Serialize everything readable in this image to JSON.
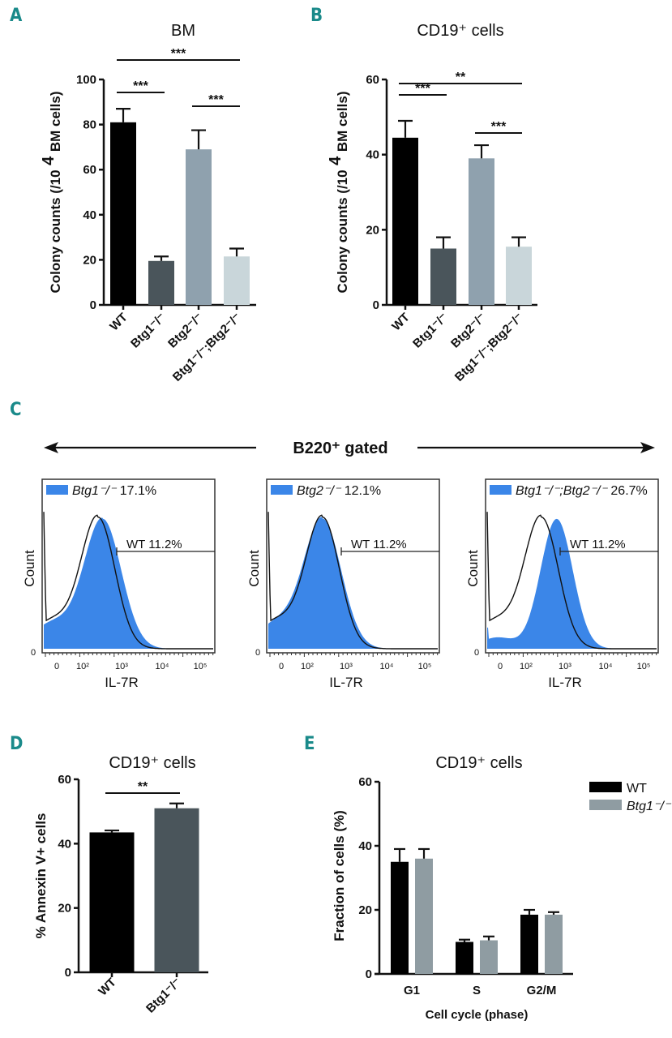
{
  "figure": {
    "banner_text": "B220⁺ gated",
    "colors": {
      "panel_letter": "#1a8a8a",
      "wt": "#000000",
      "btg1": "#4a555b",
      "btg2": "#8fa1ae",
      "dko": "#c9d6da",
      "flow_fill": "#3b86e8",
      "e_btg1": "#8f9ca2"
    }
  },
  "chart_data": [
    {
      "id": "A",
      "panel_letter": "A",
      "type": "bar",
      "title": "BM",
      "ylabel_main": "Colony counts (/10",
      "ylabel_sup": "4",
      "ylabel_end": "BM cells)",
      "xlabel": "",
      "categories": [
        "WT",
        "Btg1⁻/⁻",
        "Btg2⁻/⁻",
        "Btg1⁻/⁻;Btg2⁻/⁻"
      ],
      "values": [
        81,
        19.5,
        69,
        21.5
      ],
      "errors": [
        6,
        2,
        8.5,
        3.5
      ],
      "yticks": [
        0,
        20,
        40,
        60,
        80,
        100
      ],
      "ylim": [
        0,
        100
      ],
      "significance": [
        {
          "from": 0,
          "to": 1,
          "label": "***",
          "level": 1
        },
        {
          "from": 2,
          "to": 3,
          "label": "***",
          "level": 0
        },
        {
          "from": 0,
          "to": 3,
          "label": "***",
          "level": 2
        }
      ]
    },
    {
      "id": "B",
      "panel_letter": "B",
      "type": "bar",
      "title": "CD19⁺ cells",
      "ylabel_main": "Colony counts (/10",
      "ylabel_sup": "4",
      "ylabel_end": "BM cells)",
      "xlabel": "",
      "categories": [
        "WT",
        "Btg1⁻/⁻",
        "Btg2⁻/⁻",
        "Btg1⁻/⁻;Btg2⁻/⁻"
      ],
      "values": [
        44.5,
        15,
        39,
        15.5
      ],
      "errors": [
        4.5,
        3,
        3.5,
        2.5
      ],
      "yticks": [
        0,
        20,
        40,
        60
      ],
      "ylim": [
        0,
        60
      ],
      "significance": [
        {
          "from": 0,
          "to": 1,
          "label": "***",
          "level": 1
        },
        {
          "from": 2,
          "to": 3,
          "label": "***",
          "level": 0
        },
        {
          "from": 0,
          "to": 3,
          "label": "**",
          "level": 2
        }
      ]
    },
    {
      "id": "C",
      "panel_letter": "C",
      "type": "area",
      "title": "B220⁺ gated",
      "xlabel": "IL-7R",
      "ylabel": "Count",
      "xtick_labels": [
        "0",
        "10²",
        "10³",
        "10⁴",
        "10⁵"
      ],
      "ytick_labels": [
        "0"
      ],
      "gate_label": "WT 11.2%",
      "histograms": [
        {
          "legend": "Btg1⁻/⁻",
          "percent": "17.1%",
          "shift": 0.15,
          "width": 1.0
        },
        {
          "legend": "Btg2⁻/⁻",
          "percent": "12.1%",
          "shift": 0.0,
          "width": 1.0
        },
        {
          "legend": "Btg1⁻/⁻;Btg2⁻/⁻",
          "percent": "26.7%",
          "shift": 0.5,
          "width": 0.85
        }
      ]
    },
    {
      "id": "D",
      "panel_letter": "D",
      "type": "bar",
      "title": "CD19⁺ cells",
      "ylabel": "% Annexin V+ cells",
      "xlabel": "",
      "categories": [
        "WT",
        "Btg1⁻/⁻"
      ],
      "values": [
        43.5,
        51
      ],
      "errors": [
        0.6,
        1.5
      ],
      "yticks": [
        0,
        20,
        40,
        60
      ],
      "ylim": [
        0,
        60
      ],
      "significance": [
        {
          "from": 0,
          "to": 1,
          "label": "**",
          "level": 0
        }
      ]
    },
    {
      "id": "E",
      "panel_letter": "E",
      "type": "bar",
      "title": "CD19⁺ cells",
      "ylabel": "Fraction of cells (%)",
      "xlabel": "Cell cycle (phase)",
      "categories": [
        "G1",
        "S",
        "G2/M"
      ],
      "series": [
        {
          "name": "WT",
          "values": [
            35,
            10,
            18.5
          ],
          "errors": [
            4,
            0.7,
            1.5
          ]
        },
        {
          "name": "Btg1⁻/⁻",
          "values": [
            36,
            10.5,
            18.5
          ],
          "errors": [
            3,
            1.2,
            0.8
          ]
        }
      ],
      "yticks": [
        0,
        20,
        40,
        60
      ],
      "ylim": [
        0,
        60
      ],
      "legend_position": "top-right"
    }
  ]
}
